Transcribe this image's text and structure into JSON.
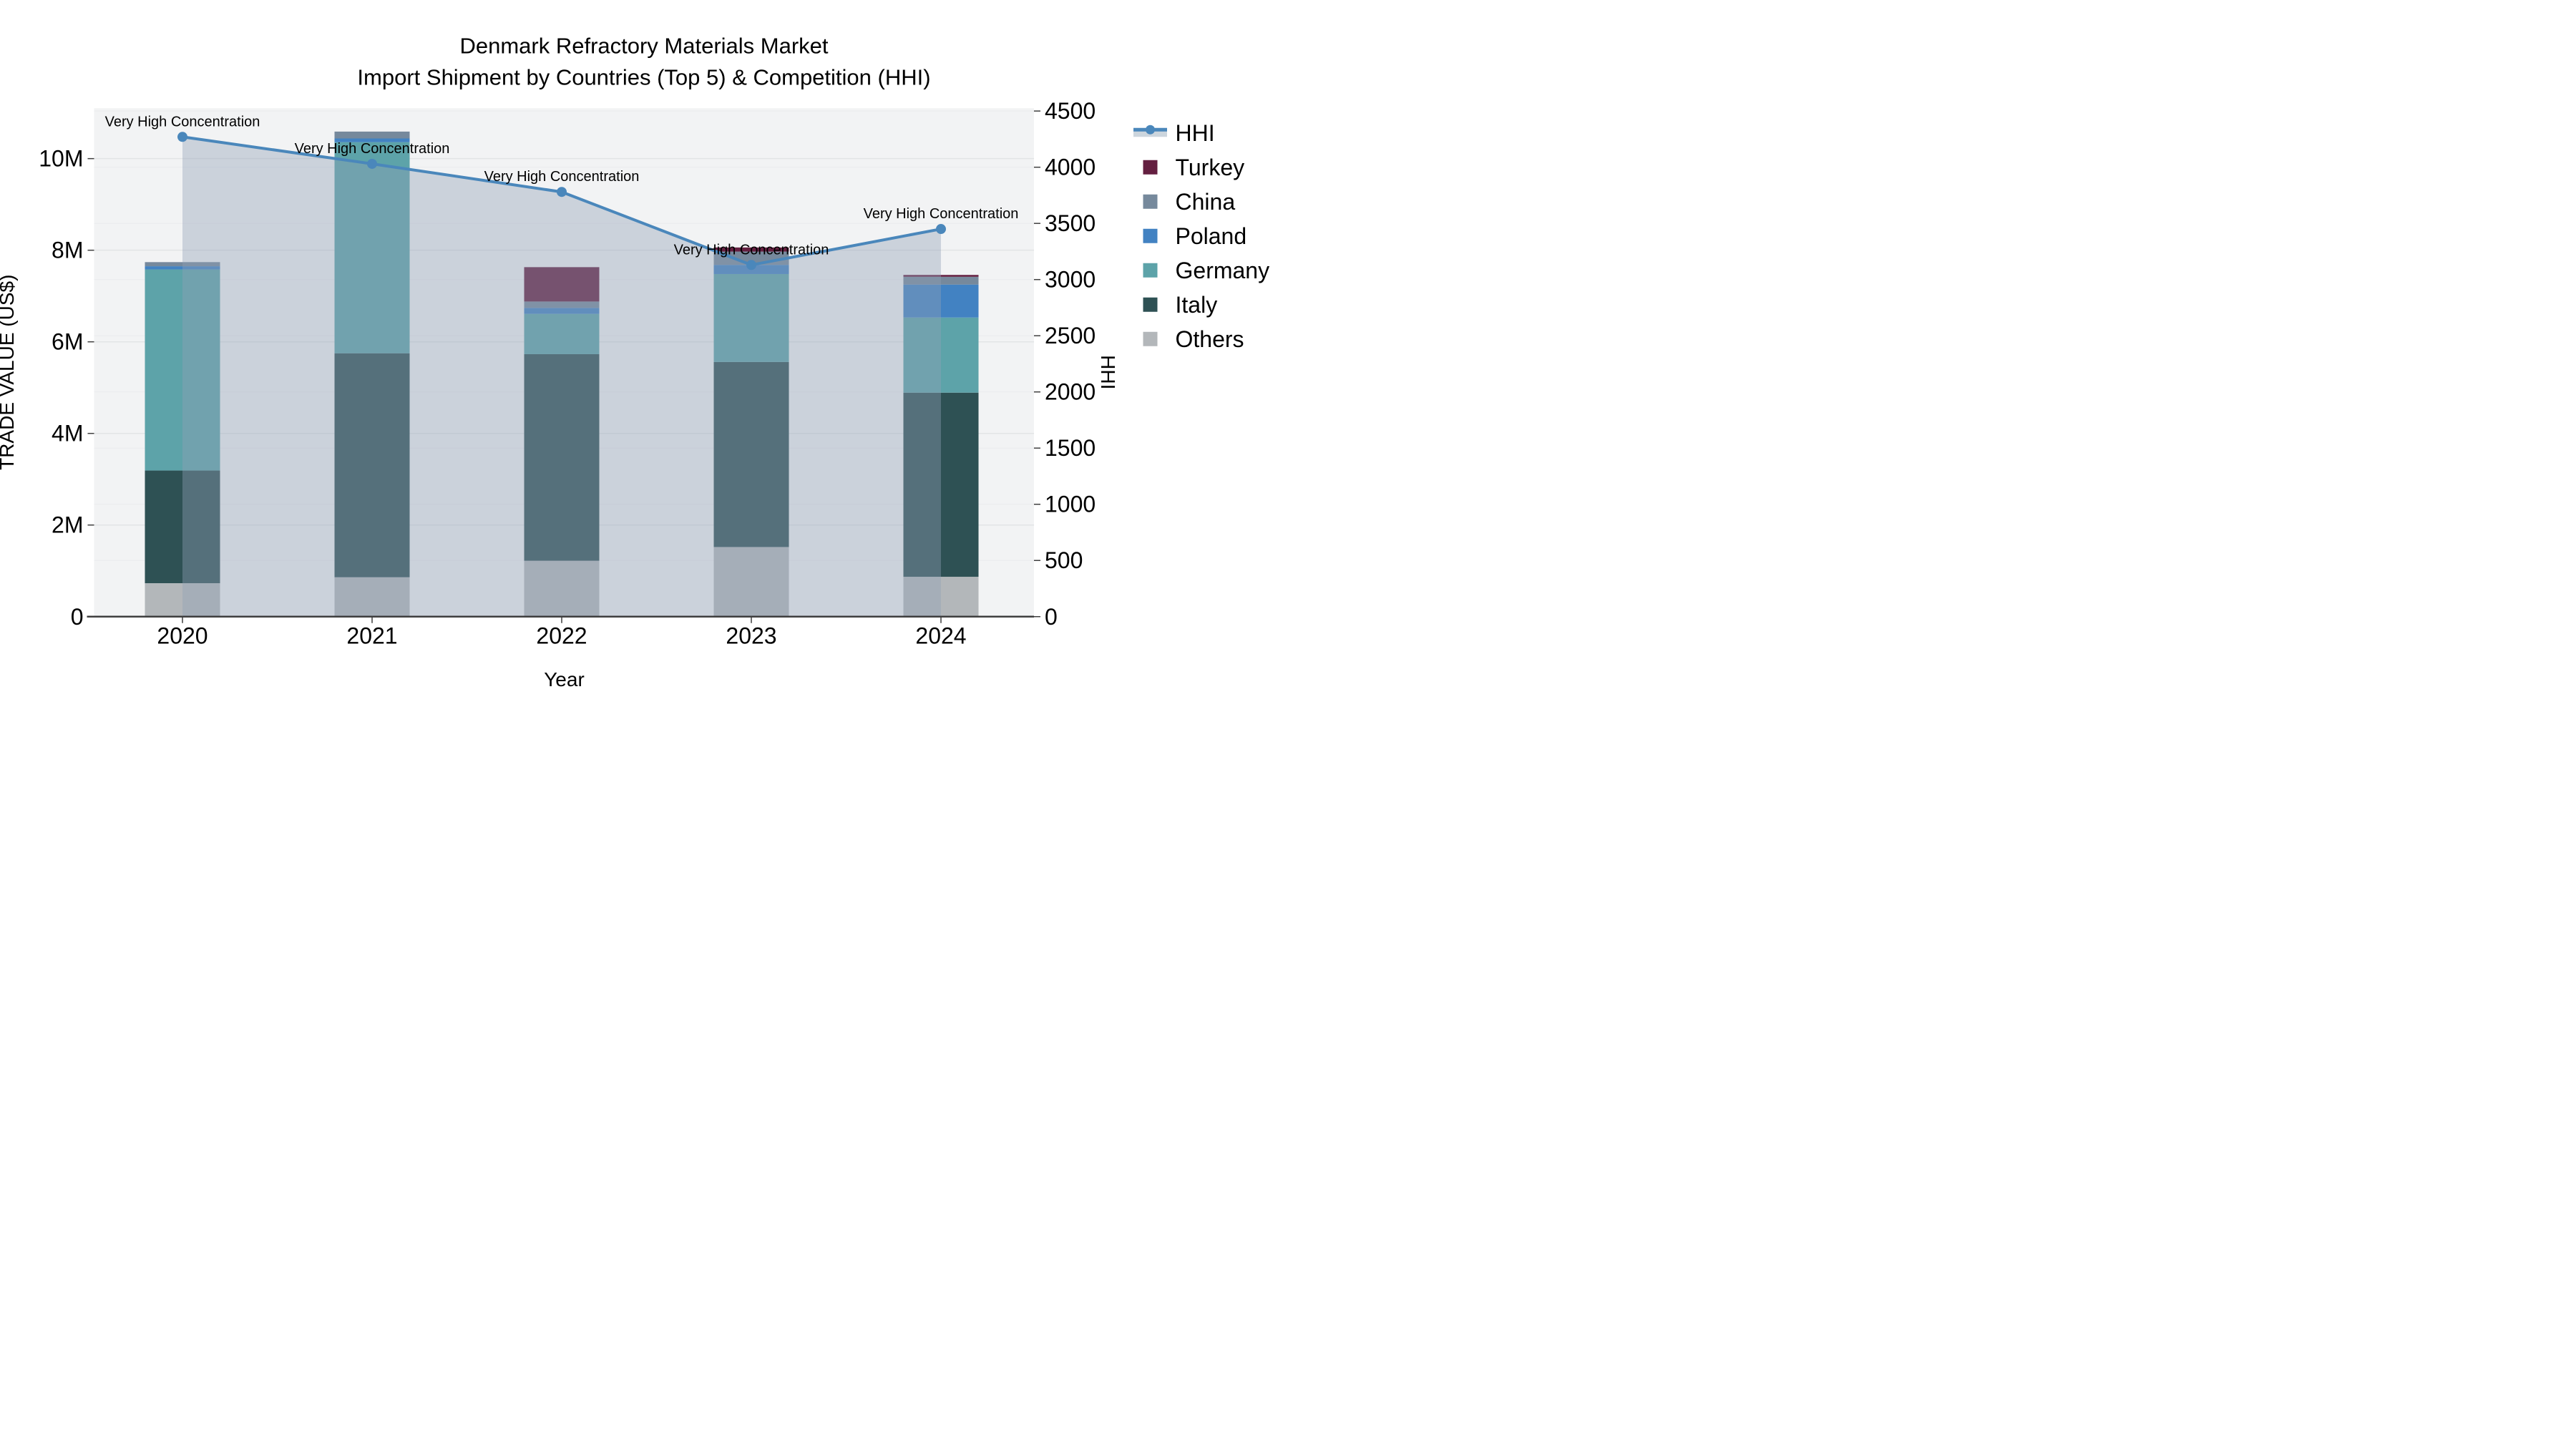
{
  "chart_data": {
    "type": "combo-stacked-bar-line",
    "title_line1": "Denmark Refractory Materials Market",
    "title_line2": "Import Shipment by Countries (Top 5) & Competition (HHI)",
    "x_axis": {
      "title": "Year",
      "categories": [
        "2020",
        "2021",
        "2022",
        "2023",
        "2024"
      ]
    },
    "y_left": {
      "title": "TRADE VALUE (US$)",
      "max": 11100000,
      "ticks": [
        {
          "value": 0,
          "label": "0"
        },
        {
          "value": 2000000,
          "label": "2M"
        },
        {
          "value": 4000000,
          "label": "4M"
        },
        {
          "value": 6000000,
          "label": "6M"
        },
        {
          "value": 8000000,
          "label": "8M"
        },
        {
          "value": 10000000,
          "label": "10M"
        }
      ]
    },
    "y_right": {
      "title": "HHI",
      "max": 4525,
      "ticks": [
        {
          "value": 0,
          "label": "0"
        },
        {
          "value": 500,
          "label": "500"
        },
        {
          "value": 1000,
          "label": "1000"
        },
        {
          "value": 1500,
          "label": "1500"
        },
        {
          "value": 2000,
          "label": "2000"
        },
        {
          "value": 2500,
          "label": "2500"
        },
        {
          "value": 3000,
          "label": "3000"
        },
        {
          "value": 3500,
          "label": "3500"
        },
        {
          "value": 4000,
          "label": "4000"
        },
        {
          "value": 4500,
          "label": "4500"
        }
      ]
    },
    "stacked_series": [
      {
        "id": "others",
        "label": "Others",
        "color": "#b3b7ba",
        "values": [
          730000,
          860000,
          1220000,
          1520000,
          870000
        ]
      },
      {
        "id": "italy",
        "label": "Italy",
        "color": "#2e5154",
        "values": [
          2460000,
          4890000,
          4510000,
          4040000,
          4020000
        ]
      },
      {
        "id": "germany",
        "label": "Germany",
        "color": "#5da3a9",
        "values": [
          4390000,
          4610000,
          880000,
          1920000,
          1640000
        ]
      },
      {
        "id": "poland",
        "label": "Poland",
        "color": "#4282c2",
        "values": [
          70000,
          80000,
          130000,
          200000,
          720000
        ]
      },
      {
        "id": "china",
        "label": "China",
        "color": "#76899c",
        "values": [
          90000,
          150000,
          140000,
          290000,
          170000
        ]
      },
      {
        "id": "turkey",
        "label": "Turkey",
        "color": "#641f40",
        "values": [
          0,
          0,
          750000,
          90000,
          40000
        ]
      }
    ],
    "hhi_series": {
      "id": "hhi",
      "label": "HHI",
      "line_color": "#4a87bb",
      "area_color": "rgba(145,160,182,0.40)",
      "legend_band_color": "#ccd5dd",
      "values": [
        4270,
        4030,
        3780,
        3130,
        3450
      ],
      "annotations": [
        "Very High Concentration",
        "Very High Concentration",
        "Very High Concentration",
        "Very High Concentration",
        "Very High Concentration"
      ]
    },
    "legend": {
      "order": [
        "hhi",
        "turkey",
        "china",
        "poland",
        "germany",
        "italy",
        "others"
      ]
    },
    "colors": {
      "plot_bg": "#f2f3f4",
      "grid_left": "#e2e4e6",
      "grid_right": "#eaebed",
      "axis_line": "#3f3f3f",
      "text": "#000000"
    }
  }
}
